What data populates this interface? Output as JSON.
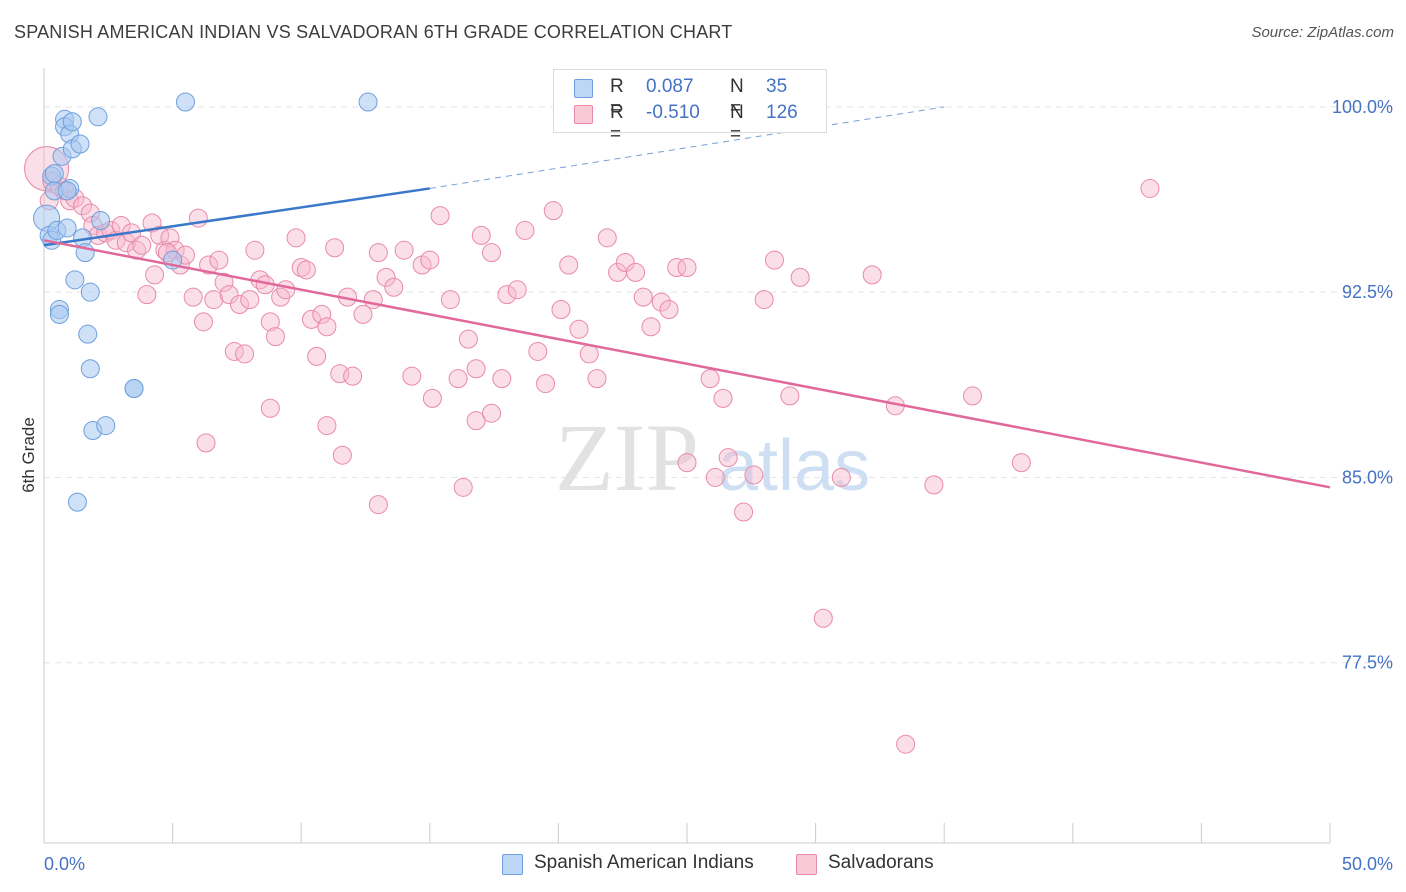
{
  "title": "SPANISH AMERICAN INDIAN VS SALVADORAN 6TH GRADE CORRELATION CHART",
  "source": "Source: ZipAtlas.com",
  "watermark": {
    "zip": "ZIP",
    "atlas": "atlas"
  },
  "legend_top": [
    {
      "r_label": "R =",
      "r_value": "0.087",
      "n_label": "N =",
      "n_value": "35"
    },
    {
      "r_label": "R =",
      "r_value": "-0.510",
      "n_label": "N =",
      "n_value": "126"
    }
  ],
  "legend_bottom": [
    "Spanish American Indians",
    "Salvadorans"
  ],
  "colors": {
    "blue_fill": "#a8c8f0",
    "blue_stroke": "#6f9fdc",
    "blue_line": "#3a78c9",
    "pink_fill": "#f6b8cc",
    "pink_stroke": "#e98aa8",
    "pink_line": "#e0689a",
    "grid": "#e4e4e4",
    "tick_label": "#4472c4",
    "axis": "#cccccc"
  },
  "chart_data": {
    "type": "scatter",
    "title": "SPANISH AMERICAN INDIAN VS SALVADORAN 6TH GRADE CORRELATION CHART",
    "xlabel": "",
    "ylabel": "6th Grade",
    "xlim": [
      0,
      50
    ],
    "ylim": [
      70.2,
      101.9
    ],
    "x_tick_labels": [
      "0.0%",
      "50.0%"
    ],
    "y_ticks": [
      77.5,
      85.0,
      92.5,
      100.0
    ],
    "y_tick_labels": [
      "77.5%",
      "85.0%",
      "92.5%",
      "100.0%"
    ],
    "grid": true,
    "legend_position": "top-center",
    "series": [
      {
        "name": "Spanish American Indians",
        "r": 0.087,
        "n": 35,
        "trend": {
          "x0": 0,
          "y0": 94.4,
          "x1": 15,
          "y1": 96.7,
          "dashed_to_x": 35,
          "dashed_to_y": 100.0
        },
        "points": [
          [
            0.1,
            95.5
          ],
          [
            0.2,
            94.8
          ],
          [
            0.3,
            94.6
          ],
          [
            0.3,
            97.2
          ],
          [
            0.4,
            96.6
          ],
          [
            0.5,
            95.0
          ],
          [
            0.6,
            91.8
          ],
          [
            0.6,
            91.6
          ],
          [
            0.7,
            98.0
          ],
          [
            0.8,
            99.5
          ],
          [
            0.8,
            99.2
          ],
          [
            0.9,
            95.1
          ],
          [
            1.0,
            98.9
          ],
          [
            1.0,
            96.7
          ],
          [
            1.1,
            99.4
          ],
          [
            1.1,
            98.3
          ],
          [
            1.2,
            93.0
          ],
          [
            1.3,
            84.0
          ],
          [
            1.4,
            98.5
          ],
          [
            1.5,
            94.7
          ],
          [
            1.6,
            94.1
          ],
          [
            1.7,
            90.8
          ],
          [
            1.8,
            89.4
          ],
          [
            1.8,
            92.5
          ],
          [
            1.9,
            86.9
          ],
          [
            2.1,
            99.6
          ],
          [
            2.2,
            95.4
          ],
          [
            2.4,
            87.1
          ],
          [
            3.5,
            88.6
          ],
          [
            3.5,
            88.6
          ],
          [
            5.0,
            93.8
          ],
          [
            5.5,
            100.2
          ],
          [
            12.6,
            100.2
          ],
          [
            0.4,
            97.3
          ],
          [
            0.9,
            96.6
          ]
        ]
      },
      {
        "name": "Salvadorans",
        "r": -0.51,
        "n": 126,
        "trend": {
          "x0": 0,
          "y0": 94.6,
          "x1": 50,
          "y1": 84.6
        },
        "points": [
          [
            0.1,
            97.5
          ],
          [
            0.3,
            97.0
          ],
          [
            0.6,
            96.8
          ],
          [
            0.8,
            96.6
          ],
          [
            1.0,
            96.2
          ],
          [
            1.2,
            96.3
          ],
          [
            1.5,
            96.0
          ],
          [
            1.8,
            95.7
          ],
          [
            1.9,
            95.2
          ],
          [
            2.1,
            94.8
          ],
          [
            2.4,
            94.9
          ],
          [
            2.6,
            95.0
          ],
          [
            2.8,
            94.6
          ],
          [
            3.0,
            95.2
          ],
          [
            3.2,
            94.5
          ],
          [
            3.4,
            94.9
          ],
          [
            3.6,
            94.2
          ],
          [
            3.8,
            94.4
          ],
          [
            4.0,
            92.4
          ],
          [
            4.2,
            95.3
          ],
          [
            4.3,
            93.2
          ],
          [
            4.5,
            94.8
          ],
          [
            4.7,
            94.2
          ],
          [
            4.9,
            94.7
          ],
          [
            5.1,
            94.2
          ],
          [
            5.3,
            93.6
          ],
          [
            5.5,
            94.0
          ],
          [
            5.8,
            92.3
          ],
          [
            6.0,
            95.5
          ],
          [
            6.2,
            91.3
          ],
          [
            6.4,
            93.6
          ],
          [
            6.6,
            92.2
          ],
          [
            6.8,
            93.8
          ],
          [
            7.0,
            92.9
          ],
          [
            7.2,
            92.4
          ],
          [
            7.4,
            90.1
          ],
          [
            7.6,
            92.0
          ],
          [
            7.8,
            90.0
          ],
          [
            8.0,
            92.2
          ],
          [
            8.2,
            94.2
          ],
          [
            8.4,
            93.0
          ],
          [
            8.6,
            92.8
          ],
          [
            8.8,
            91.3
          ],
          [
            9.0,
            90.7
          ],
          [
            9.2,
            92.3
          ],
          [
            9.4,
            92.6
          ],
          [
            9.8,
            94.7
          ],
          [
            10.0,
            93.5
          ],
          [
            10.2,
            93.4
          ],
          [
            10.4,
            91.4
          ],
          [
            10.6,
            89.9
          ],
          [
            10.8,
            91.6
          ],
          [
            11.0,
            91.1
          ],
          [
            11.3,
            94.3
          ],
          [
            11.5,
            89.2
          ],
          [
            11.8,
            92.3
          ],
          [
            12.0,
            89.1
          ],
          [
            12.4,
            91.6
          ],
          [
            12.8,
            92.2
          ],
          [
            13.0,
            94.1
          ],
          [
            13.3,
            93.1
          ],
          [
            13.6,
            92.7
          ],
          [
            14.0,
            94.2
          ],
          [
            14.3,
            89.1
          ],
          [
            14.7,
            93.6
          ],
          [
            15.0,
            93.8
          ],
          [
            15.4,
            95.6
          ],
          [
            15.8,
            92.2
          ],
          [
            16.1,
            89.0
          ],
          [
            16.5,
            90.6
          ],
          [
            16.8,
            89.4
          ],
          [
            17.0,
            94.8
          ],
          [
            17.4,
            94.1
          ],
          [
            17.8,
            89.0
          ],
          [
            18.0,
            92.4
          ],
          [
            18.4,
            92.6
          ],
          [
            18.7,
            95.0
          ],
          [
            19.2,
            90.1
          ],
          [
            19.5,
            88.8
          ],
          [
            19.8,
            95.8
          ],
          [
            20.1,
            91.8
          ],
          [
            20.4,
            93.6
          ],
          [
            20.8,
            91.0
          ],
          [
            21.2,
            90.0
          ],
          [
            21.5,
            89.0
          ],
          [
            21.9,
            94.7
          ],
          [
            22.3,
            93.3
          ],
          [
            22.6,
            93.7
          ],
          [
            23.0,
            93.3
          ],
          [
            23.3,
            92.3
          ],
          [
            23.6,
            91.1
          ],
          [
            24.0,
            92.1
          ],
          [
            24.3,
            91.8
          ],
          [
            24.6,
            93.5
          ],
          [
            25.0,
            93.5
          ],
          [
            6.3,
            86.4
          ],
          [
            8.8,
            87.8
          ],
          [
            11.0,
            87.1
          ],
          [
            11.6,
            85.9
          ],
          [
            13.0,
            83.9
          ],
          [
            15.1,
            88.2
          ],
          [
            16.3,
            84.6
          ],
          [
            16.8,
            87.3
          ],
          [
            17.4,
            87.6
          ],
          [
            25.0,
            85.6
          ],
          [
            25.9,
            89.0
          ],
          [
            26.4,
            88.2
          ],
          [
            26.1,
            85.0
          ],
          [
            26.6,
            85.8
          ],
          [
            27.2,
            83.6
          ],
          [
            27.6,
            85.1
          ],
          [
            28.0,
            92.2
          ],
          [
            28.4,
            93.8
          ],
          [
            29.0,
            88.3
          ],
          [
            29.4,
            93.1
          ],
          [
            30.3,
            79.3
          ],
          [
            31.0,
            85.0
          ],
          [
            32.2,
            93.2
          ],
          [
            33.1,
            87.9
          ],
          [
            33.5,
            74.2
          ],
          [
            34.6,
            84.7
          ],
          [
            36.1,
            88.3
          ],
          [
            38.0,
            85.6
          ],
          [
            43.0,
            96.7
          ],
          [
            0.2,
            96.2
          ],
          [
            4.8,
            94.1
          ]
        ]
      }
    ]
  }
}
